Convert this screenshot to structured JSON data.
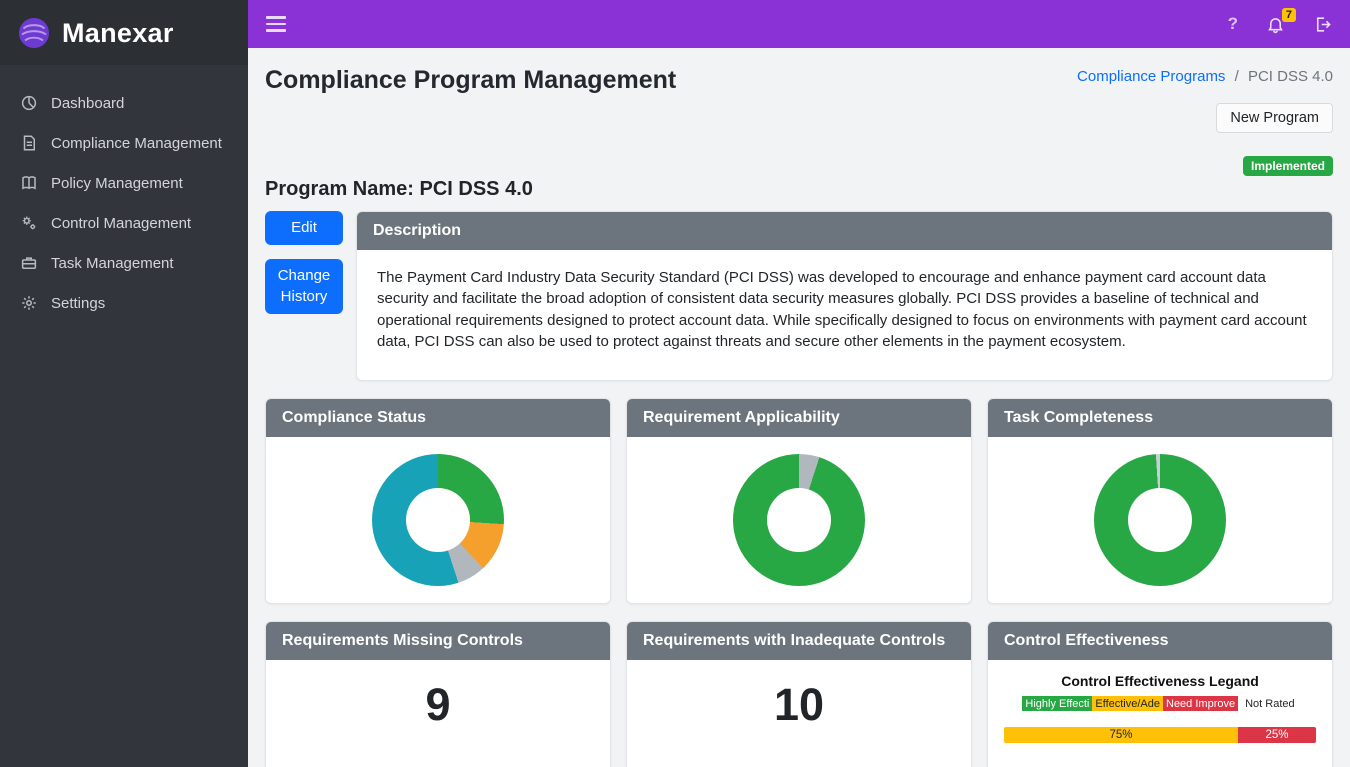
{
  "topbar": {
    "help_icon": "?",
    "notification_count": "7"
  },
  "sidebar": {
    "brand": "Manexar",
    "items": [
      {
        "label": "Dashboard",
        "icon": "dashboard-icon"
      },
      {
        "label": "Compliance Management",
        "icon": "compliance-icon"
      },
      {
        "label": "Policy Management",
        "icon": "policy-icon"
      },
      {
        "label": "Control Management",
        "icon": "control-icon"
      },
      {
        "label": "Task Management",
        "icon": "task-icon"
      },
      {
        "label": "Settings",
        "icon": "settings-icon"
      }
    ]
  },
  "header": {
    "title": "Compliance Program Management",
    "breadcrumb_link": "Compliance Programs",
    "breadcrumb_separator": "/",
    "breadcrumb_current": "PCI DSS 4.0",
    "new_program_label": "New Program",
    "status_badge": "Implemented",
    "status_color": "#28a745"
  },
  "program": {
    "name_heading": "Program Name: PCI DSS 4.0",
    "edit_label": "Edit",
    "change_history_label": "Change History",
    "description_title": "Description",
    "description_text": "The Payment Card Industry Data Security Standard (PCI DSS) was developed to encourage and enhance payment card account data security and facilitate the broad adoption of consistent data security measures globally. PCI DSS provides a baseline of technical and operational requirements designed to protect account data. While specifically designed to focus on environments with payment card account data, PCI DSS can also be used to protect against threats and secure other elements in the payment ecosystem."
  },
  "cards": {
    "compliance_status": {
      "title": "Compliance Status"
    },
    "requirement_applicability": {
      "title": "Requirement Applicability"
    },
    "task_completeness": {
      "title": "Task Completeness"
    },
    "requirements_missing_controls": {
      "title": "Requirements Missing Controls",
      "value": "9"
    },
    "requirements_inadequate_controls": {
      "title": "Requirements with Inadequate Controls",
      "value": "10"
    },
    "control_effectiveness": {
      "title": "Control Effectiveness",
      "legend_title": "Control Effectiveness Legand",
      "legend_items": [
        {
          "label": "Highly Effecti",
          "color": "#28a745",
          "text_color": "#ffffff"
        },
        {
          "label": "Effective/Ade",
          "color": "#ffc107",
          "text_color": "#212529"
        },
        {
          "label": "Need Improve",
          "color": "#dc3545",
          "text_color": "#ffffff"
        },
        {
          "label": "Not Rated",
          "color": "transparent",
          "text_color": "#212529"
        }
      ]
    }
  },
  "chart_data": [
    {
      "type": "pie",
      "title": "Compliance Status",
      "donut": true,
      "segments": [
        {
          "label": "green",
          "value": 26,
          "color": "#28a745"
        },
        {
          "label": "orange",
          "value": 12,
          "color": "#f5a02c"
        },
        {
          "label": "gray",
          "value": 7,
          "color": "#b0b7bd"
        },
        {
          "label": "teal",
          "value": 55,
          "color": "#17a2b8"
        }
      ]
    },
    {
      "type": "pie",
      "title": "Requirement Applicability",
      "donut": true,
      "segments": [
        {
          "label": "gray",
          "value": 5,
          "color": "#b0b7bd"
        },
        {
          "label": "green",
          "value": 95,
          "color": "#28a745"
        }
      ]
    },
    {
      "type": "pie",
      "title": "Task Completeness",
      "donut": true,
      "segments": [
        {
          "label": "green",
          "value": 99,
          "color": "#28a745"
        },
        {
          "label": "gray",
          "value": 1,
          "color": "#c9ced3"
        }
      ]
    },
    {
      "type": "stacked_bar",
      "title": "Control Effectiveness",
      "segments": [
        {
          "label": "75%",
          "value": 75,
          "color": "#ffc107",
          "text_color": "#212529"
        },
        {
          "label": "25%",
          "value": 25,
          "color": "#dc3545",
          "text_color": "#ffffff"
        }
      ]
    }
  ]
}
